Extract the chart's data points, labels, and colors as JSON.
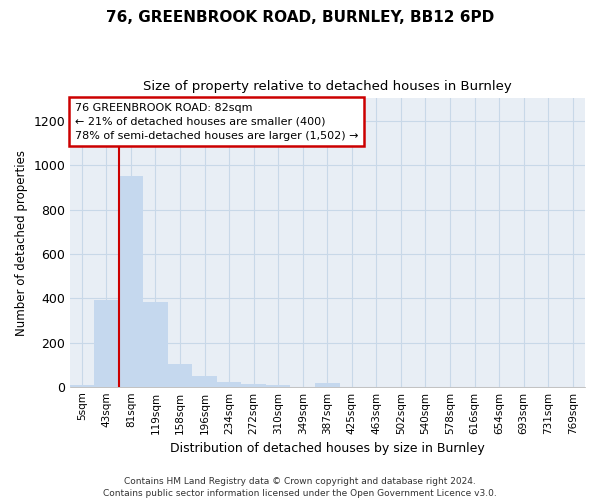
{
  "title": "76, GREENBROOK ROAD, BURNLEY, BB12 6PD",
  "subtitle": "Size of property relative to detached houses in Burnley",
  "xlabel": "Distribution of detached houses by size in Burnley",
  "ylabel": "Number of detached properties",
  "bar_color": "#c5d8ee",
  "categories": [
    "5sqm",
    "43sqm",
    "81sqm",
    "119sqm",
    "158sqm",
    "196sqm",
    "234sqm",
    "272sqm",
    "310sqm",
    "349sqm",
    "387sqm",
    "425sqm",
    "463sqm",
    "502sqm",
    "540sqm",
    "578sqm",
    "616sqm",
    "654sqm",
    "693sqm",
    "731sqm",
    "769sqm"
  ],
  "values": [
    10,
    395,
    950,
    385,
    105,
    50,
    22,
    15,
    10,
    0,
    18,
    0,
    0,
    0,
    0,
    0,
    0,
    0,
    0,
    0,
    0
  ],
  "ylim": [
    0,
    1300
  ],
  "yticks": [
    0,
    200,
    400,
    600,
    800,
    1000,
    1200
  ],
  "marker_label": "76 GREENBROOK ROAD: 82sqm\n← 21% of detached houses are smaller (400)\n78% of semi-detached houses are larger (1,502) →",
  "vline_color": "#cc0000",
  "footer": "Contains HM Land Registry data © Crown copyright and database right 2024.\nContains public sector information licensed under the Open Government Licence v3.0.",
  "fig_background": "#ffffff",
  "plot_background": "#e8eef5",
  "grid_color": "#c8d8e8",
  "annotation_box_bg": "#ffffff",
  "annotation_box_edge": "#cc0000"
}
